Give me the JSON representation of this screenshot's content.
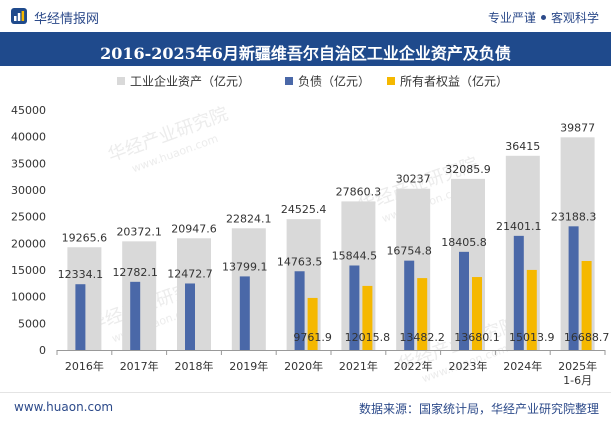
{
  "header": {
    "brand": "华经情报网",
    "tagline_1": "专业严谨",
    "tagline_2": "客观科学"
  },
  "footer": {
    "url": "www.huaon.com",
    "source": "数据来源：国家统计局，华经产业研究院整理"
  },
  "watermark": {
    "name": "华经产业研究院",
    "url": "www.huaon.com"
  },
  "colors": {
    "assets": "#d9d9d9",
    "liabilities": "#4a68a8",
    "equity": "#f5b800",
    "title_bar": "#1f4a8c"
  },
  "chart_data": {
    "type": "bar",
    "title": "2016-2025年6月新疆维吾尔自治区工业企业资产及负债",
    "categories": [
      "2016年",
      "2017年",
      "2018年",
      "2019年",
      "2020年",
      "2021年",
      "2022年",
      "2023年",
      "2024年",
      "2025年\n1-6月"
    ],
    "series": [
      {
        "name": "工业企业资产（亿元）",
        "values": [
          19265.6,
          20372.1,
          20947.6,
          22824.1,
          24525.4,
          27860.3,
          30237,
          32085.9,
          36415,
          39877
        ]
      },
      {
        "name": "负债（亿元）",
        "values": [
          12334.1,
          12782.1,
          12472.7,
          13799.1,
          14763.5,
          15844.5,
          16754.8,
          18405.8,
          21401.1,
          23188.3
        ]
      },
      {
        "name": "所有者权益（亿元）",
        "values": [
          null,
          null,
          null,
          null,
          9761.9,
          12015.8,
          13482.2,
          13680.1,
          15013.9,
          16688.7
        ]
      }
    ],
    "labels": {
      "assets": [
        "19265.6",
        "20372.1",
        "20947.6",
        "22824.1",
        "24525.4",
        "27860.3",
        "30237",
        "32085.9",
        "36415",
        "39877"
      ],
      "liabilities": [
        "12334.1",
        "12782.1",
        "12472.7",
        "13799.1",
        "14763.5",
        "15844.5",
        "16754.8",
        "18405.8",
        "21401.1",
        "23188.3"
      ],
      "equity": [
        "",
        "",
        "",
        "",
        "9761.9",
        "12015.8",
        "13482.2",
        "13680.1",
        "15013.9",
        "16688.7"
      ]
    },
    "yticks": [
      "0",
      "5000",
      "10000",
      "15000",
      "20000",
      "25000",
      "30000",
      "35000",
      "40000",
      "45000"
    ],
    "ylim": [
      0,
      45000
    ],
    "xlabel": "",
    "ylabel": "",
    "legend_position": "top"
  }
}
